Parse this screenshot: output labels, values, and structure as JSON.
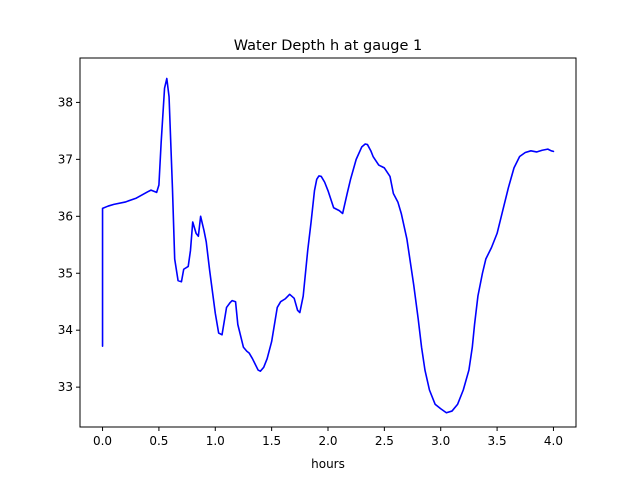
{
  "chart_data": {
    "type": "line",
    "title": "Water Depth h at gauge 1",
    "xlabel": "hours",
    "ylabel": "",
    "xlim": [
      -0.2,
      4.2
    ],
    "ylim": [
      32.3,
      38.78
    ],
    "xticks": [
      0.0,
      0.5,
      1.0,
      1.5,
      2.0,
      2.5,
      3.0,
      3.5,
      4.0
    ],
    "xtick_labels": [
      "0.0",
      "0.5",
      "1.0",
      "1.5",
      "2.0",
      "2.5",
      "3.0",
      "3.5",
      "4.0"
    ],
    "yticks": [
      33,
      34,
      35,
      36,
      37,
      38
    ],
    "ytick_labels": [
      "33",
      "34",
      "35",
      "36",
      "37",
      "38"
    ],
    "grid": false,
    "series": [
      {
        "color": "#0000ff",
        "x": [
          0.0,
          0.0,
          0.05,
          0.1,
          0.2,
          0.3,
          0.4,
          0.43,
          0.48,
          0.5,
          0.52,
          0.55,
          0.57,
          0.59,
          0.62,
          0.64,
          0.67,
          0.7,
          0.72,
          0.76,
          0.78,
          0.8,
          0.83,
          0.85,
          0.87,
          0.9,
          0.92,
          0.95,
          0.98,
          1.0,
          1.03,
          1.06,
          1.1,
          1.13,
          1.15,
          1.18,
          1.2,
          1.25,
          1.28,
          1.3,
          1.33,
          1.35,
          1.38,
          1.4,
          1.43,
          1.46,
          1.5,
          1.55,
          1.58,
          1.62,
          1.66,
          1.7,
          1.73,
          1.75,
          1.78,
          1.82,
          1.85,
          1.88,
          1.9,
          1.92,
          1.94,
          1.97,
          2.0,
          2.05,
          2.1,
          2.13,
          2.17,
          2.2,
          2.25,
          2.3,
          2.33,
          2.35,
          2.38,
          2.4,
          2.45,
          2.5,
          2.55,
          2.58,
          2.62,
          2.65,
          2.7,
          2.73,
          2.76,
          2.8,
          2.83,
          2.86,
          2.9,
          2.95,
          3.0,
          3.05,
          3.1,
          3.15,
          3.2,
          3.25,
          3.28,
          3.3,
          3.33,
          3.37,
          3.4,
          3.45,
          3.5,
          3.55,
          3.6,
          3.65,
          3.7,
          3.75,
          3.8,
          3.85,
          3.9,
          3.95,
          3.98,
          4.0
        ],
        "y": [
          33.72,
          36.14,
          36.18,
          36.21,
          36.25,
          36.32,
          36.43,
          36.46,
          36.42,
          36.55,
          37.3,
          38.25,
          38.42,
          38.1,
          36.5,
          35.25,
          34.87,
          34.85,
          35.07,
          35.12,
          35.4,
          35.9,
          35.7,
          35.65,
          36.0,
          35.75,
          35.55,
          35.05,
          34.6,
          34.3,
          33.95,
          33.92,
          34.4,
          34.48,
          34.52,
          34.5,
          34.1,
          33.7,
          33.63,
          33.6,
          33.5,
          33.42,
          33.3,
          33.28,
          33.35,
          33.5,
          33.8,
          34.4,
          34.5,
          34.55,
          34.63,
          34.56,
          34.35,
          34.31,
          34.6,
          35.4,
          35.9,
          36.45,
          36.65,
          36.71,
          36.7,
          36.6,
          36.45,
          36.15,
          36.1,
          36.05,
          36.4,
          36.65,
          37.0,
          37.22,
          37.27,
          37.26,
          37.15,
          37.05,
          36.9,
          36.85,
          36.7,
          36.4,
          36.25,
          36.05,
          35.6,
          35.2,
          34.8,
          34.2,
          33.7,
          33.3,
          32.95,
          32.7,
          32.62,
          32.55,
          32.58,
          32.7,
          32.95,
          33.3,
          33.7,
          34.1,
          34.6,
          35.0,
          35.25,
          35.45,
          35.7,
          36.1,
          36.5,
          36.85,
          37.05,
          37.12,
          37.15,
          37.13,
          37.16,
          37.18,
          37.15,
          37.14
        ]
      }
    ]
  }
}
